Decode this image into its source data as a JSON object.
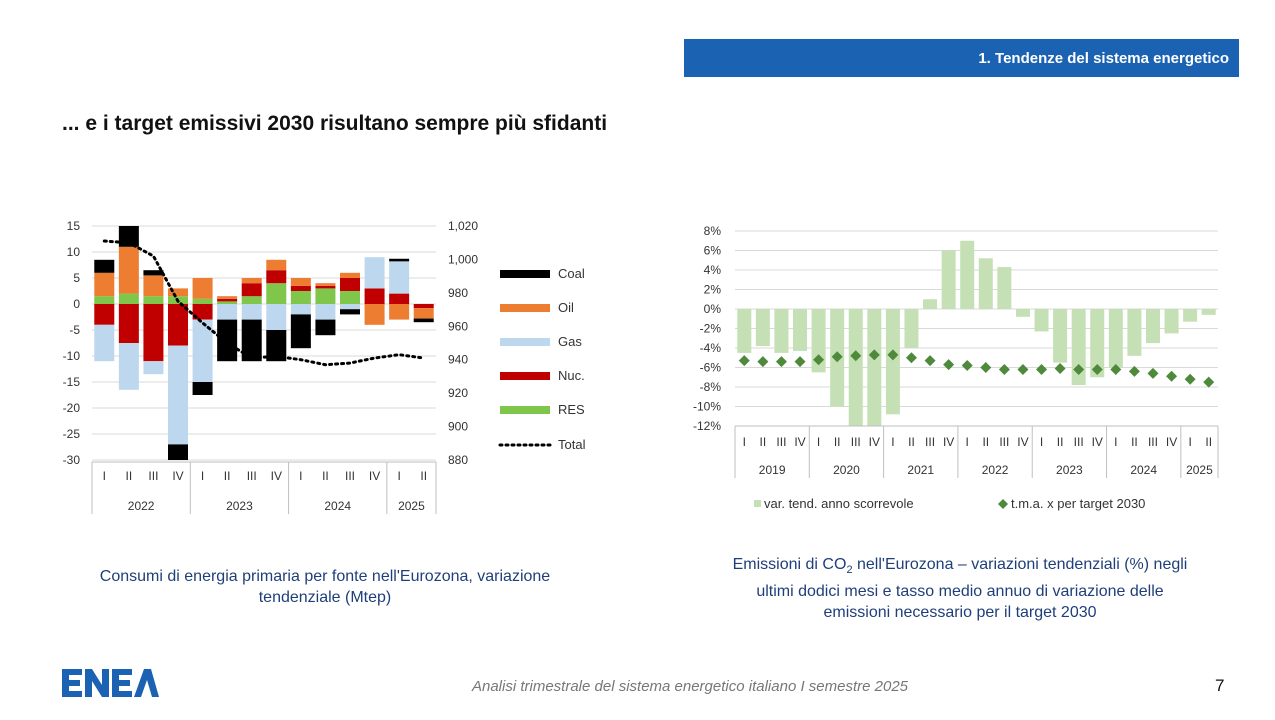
{
  "header": {
    "section_label": "1. Tendenze del sistema energetico"
  },
  "title": "... e i target emissivi 2030 risultano sempre più sfidanti",
  "footer": {
    "text": "Analisi trimestrale del sistema energetico italiano I semestre 2025",
    "page": "7",
    "logo_text": "ENEA"
  },
  "colors": {
    "res": "#7fc64a",
    "nuc": "#c00000",
    "gas": "#bdd7ee",
    "oil": "#ed7d31",
    "coal": "#000000",
    "bar2": "#c5e0b4",
    "marker2": "#4f8a3c",
    "header": "#1b62b3"
  },
  "chart_data": [
    {
      "type": "bar",
      "stacked": true,
      "title": "Consumi di energia primaria per fonte nell'Eurozona, variazione tendenziale (Mtep)",
      "caption_lines": [
        "Consumi di energia primaria per fonte nell'Eurozona, variazione",
        "tendenziale (Mtep)"
      ],
      "quarters": [
        "I",
        "II",
        "III",
        "IV",
        "I",
        "II",
        "III",
        "IV",
        "I",
        "II",
        "III",
        "IV",
        "I",
        "II"
      ],
      "years": [
        {
          "label": "2022",
          "start": 0,
          "count": 4
        },
        {
          "label": "2023",
          "start": 4,
          "count": 4
        },
        {
          "label": "2024",
          "start": 8,
          "count": 4
        },
        {
          "label": "2025",
          "start": 12,
          "count": 2
        }
      ],
      "ylim": [
        -30,
        15
      ],
      "yticks": [
        "15",
        "10",
        "5",
        "0",
        "-5",
        "-10",
        "-15",
        "-20",
        "-25",
        "-30"
      ],
      "y2lim": [
        880,
        1020
      ],
      "y2ticks": [
        "1,020",
        "1,000",
        "980",
        "960",
        "940",
        "920",
        "900",
        "880"
      ],
      "legend_position": "right",
      "series": [
        {
          "name": "RES",
          "key": "res",
          "values": [
            1.5,
            2.0,
            1.5,
            1.5,
            1.0,
            0.5,
            1.5,
            4.0,
            2.5,
            3.0,
            2.5,
            0.0,
            0.0,
            0.0
          ]
        },
        {
          "name": "Nuc.",
          "key": "nuc",
          "values": [
            -4.0,
            -7.5,
            -11.0,
            -8.0,
            -3.0,
            0.5,
            2.5,
            2.5,
            1.0,
            0.5,
            2.5,
            3.0,
            2.0,
            -0.8
          ]
        },
        {
          "name": "Gas",
          "key": "gas",
          "values": [
            -7.0,
            -9.0,
            -2.5,
            -19.0,
            -12.0,
            -3.0,
            -3.0,
            -5.0,
            -2.0,
            -3.0,
            -1.0,
            6.0,
            6.2,
            0.0
          ]
        },
        {
          "name": "Oil",
          "key": "oil",
          "values": [
            4.5,
            9.0,
            4.0,
            1.5,
            4.0,
            0.5,
            1.0,
            2.0,
            1.5,
            0.5,
            1.0,
            -4.0,
            -3.0,
            -2.0
          ]
        },
        {
          "name": "Coal",
          "key": "coal",
          "values": [
            2.5,
            4.0,
            1.0,
            -3.0,
            -2.5,
            -8.0,
            -8.0,
            -6.0,
            -6.5,
            -3.0,
            -1.0,
            0.0,
            0.5,
            -0.7
          ]
        }
      ],
      "total": {
        "name": "Total",
        "values": [
          1011,
          1010,
          1002,
          975,
          962,
          950,
          941,
          942,
          940,
          937,
          938,
          941,
          943,
          941
        ]
      }
    },
    {
      "type": "bar",
      "title": "Emissioni di CO2 nell'Eurozona – variazioni tendenziali (%) negli ultimi dodici mesi e tasso medio annuo di variazione delle emissioni necessario per il target 2030",
      "caption_pre": "Emissioni di CO",
      "caption_sub": "2",
      "caption_post": " nell'Eurozona – variazioni tendenziali (%) negli",
      "caption_lines": [
        "ultimi dodici mesi e tasso medio annuo di variazione delle",
        "emissioni necessario per il target 2030"
      ],
      "quarters": [
        "I",
        "II",
        "III",
        "IV",
        "I",
        "II",
        "III",
        "IV",
        "I",
        "II",
        "III",
        "IV",
        "I",
        "II",
        "III",
        "IV",
        "I",
        "II",
        "III",
        "IV",
        "I",
        "II",
        "III",
        "IV",
        "I",
        "II"
      ],
      "years": [
        {
          "label": "2019",
          "start": 0,
          "count": 4
        },
        {
          "label": "2020",
          "start": 4,
          "count": 4
        },
        {
          "label": "2021",
          "start": 8,
          "count": 4
        },
        {
          "label": "2022",
          "start": 12,
          "count": 4
        },
        {
          "label": "2023",
          "start": 16,
          "count": 4
        },
        {
          "label": "2024",
          "start": 20,
          "count": 4
        },
        {
          "label": "2025",
          "start": 24,
          "count": 2
        }
      ],
      "ylim": [
        -12,
        8
      ],
      "yticks": [
        "8%",
        "6%",
        "4%",
        "2%",
        "0%",
        "-2%",
        "-4%",
        "-6%",
        "-8%",
        "-10%",
        "-12%"
      ],
      "legend_position": "bottom",
      "series": [
        {
          "name": "var. tend. anno scorrevole",
          "values": [
            -4.5,
            -3.8,
            -4.5,
            -4.3,
            -6.5,
            -10.0,
            -12.0,
            -12.0,
            -10.8,
            -4.0,
            1.0,
            6.0,
            7.0,
            5.2,
            4.3,
            -0.8,
            -2.3,
            -5.5,
            -7.8,
            -7.0,
            -6.0,
            -4.8,
            -3.5,
            -2.5,
            -1.3,
            -0.6
          ]
        },
        {
          "name": "t.m.a. x per  target 2030",
          "values": [
            -5.3,
            -5.4,
            -5.4,
            -5.4,
            -5.2,
            -4.9,
            -4.8,
            -4.7,
            -4.7,
            -5.0,
            -5.3,
            -5.7,
            -5.8,
            -6.0,
            -6.2,
            -6.2,
            -6.2,
            -6.1,
            -6.2,
            -6.2,
            -6.2,
            -6.4,
            -6.6,
            -6.9,
            -7.2,
            -7.5
          ]
        }
      ]
    }
  ]
}
